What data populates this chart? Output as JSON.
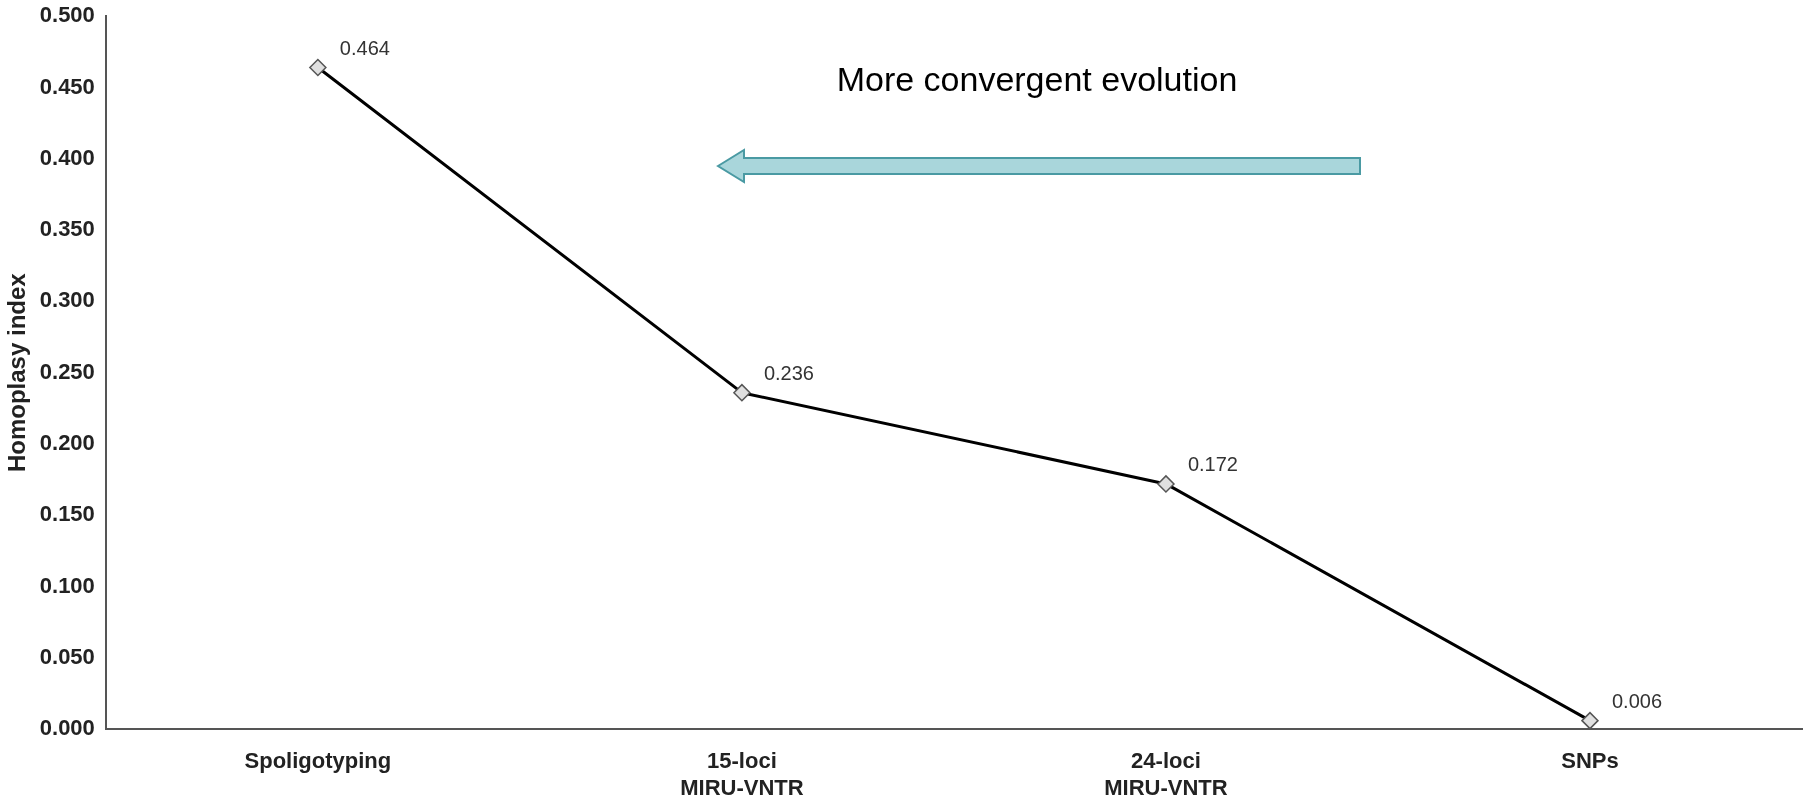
{
  "chart_data": {
    "type": "line",
    "ylabel": "Homoplasy index",
    "categories": [
      "Spoligotyping",
      "15-loci\nMIRU-VNTR",
      "24-loci\nMIRU-VNTR",
      "SNPs"
    ],
    "values": [
      0.464,
      0.236,
      0.172,
      0.006
    ],
    "color": "#000000",
    "marker": "diamond",
    "line_style": "solid",
    "data_labels": true,
    "grid": false,
    "legend": false,
    "ylim": [
      0,
      0.5
    ],
    "yticks": [
      {
        "value": 0,
        "label": "0.000"
      },
      {
        "value": 0.05,
        "label": "0.050"
      },
      {
        "value": 0.1,
        "label": "0.100"
      },
      {
        "value": 0.15,
        "label": "0.150"
      },
      {
        "value": 0.2,
        "label": "0.200"
      },
      {
        "value": 0.25,
        "label": "0.250"
      },
      {
        "value": 0.3,
        "label": "0.300"
      },
      {
        "value": 0.35,
        "label": "0.350"
      },
      {
        "value": 0.4,
        "label": "0.400"
      },
      {
        "value": 0.45,
        "label": "0.450"
      },
      {
        "value": 0.5,
        "label": "0.500"
      }
    ],
    "annotations": [
      "More convergent evolution"
    ]
  }
}
